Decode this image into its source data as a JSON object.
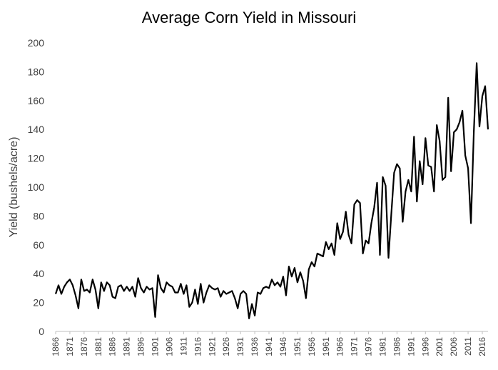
{
  "chart_data": {
    "type": "line",
    "title": "Average Corn Yield in Missouri",
    "xlabel": "",
    "ylabel": "Yield (bushels/acre)",
    "ylim": [
      0,
      200
    ],
    "yticks": [
      0,
      20,
      40,
      60,
      80,
      100,
      120,
      140,
      160,
      180,
      200
    ],
    "xticks": [
      1866,
      1871,
      1876,
      1881,
      1886,
      1891,
      1896,
      1901,
      1906,
      1911,
      1916,
      1921,
      1926,
      1931,
      1936,
      1941,
      1946,
      1951,
      1956,
      1961,
      1966,
      1971,
      1976,
      1981,
      1986,
      1991,
      1996,
      2001,
      2006,
      2011,
      2016
    ],
    "grid": false,
    "x_start": 1866,
    "x_end": 2018,
    "series": [
      {
        "values": [
          26,
          32,
          26,
          31,
          34,
          36,
          32,
          25,
          16,
          36,
          28,
          29,
          27,
          36,
          29,
          16,
          34,
          28,
          34,
          32,
          24,
          23,
          31,
          32,
          28,
          31,
          28,
          31,
          24,
          37,
          30,
          27,
          31,
          29,
          30,
          10,
          39,
          30,
          27,
          34,
          32,
          31,
          27,
          27,
          33,
          26,
          32,
          17,
          20,
          29,
          19,
          33,
          20,
          27,
          32,
          30,
          29,
          30,
          24,
          28,
          26,
          27,
          28,
          23,
          16,
          26,
          28,
          26,
          9,
          19,
          11,
          27,
          26,
          30,
          31,
          30,
          36,
          32,
          34,
          31,
          38,
          25,
          45,
          38,
          44,
          34,
          41,
          35,
          23,
          43,
          48,
          45,
          54,
          53,
          52,
          62,
          57,
          61,
          53,
          75,
          64,
          69,
          83,
          67,
          61,
          88,
          91,
          89,
          54,
          63,
          61,
          75,
          86,
          103,
          53,
          107,
          101,
          51,
          81,
          110,
          116,
          113,
          76,
          97,
          105,
          97,
          135,
          90,
          118,
          102,
          134,
          115,
          114,
          97,
          143,
          132,
          105,
          107,
          162,
          111,
          138,
          140,
          145,
          153,
          122,
          113,
          75,
          138,
          186,
          142,
          163,
          170,
          140
        ]
      }
    ]
  }
}
